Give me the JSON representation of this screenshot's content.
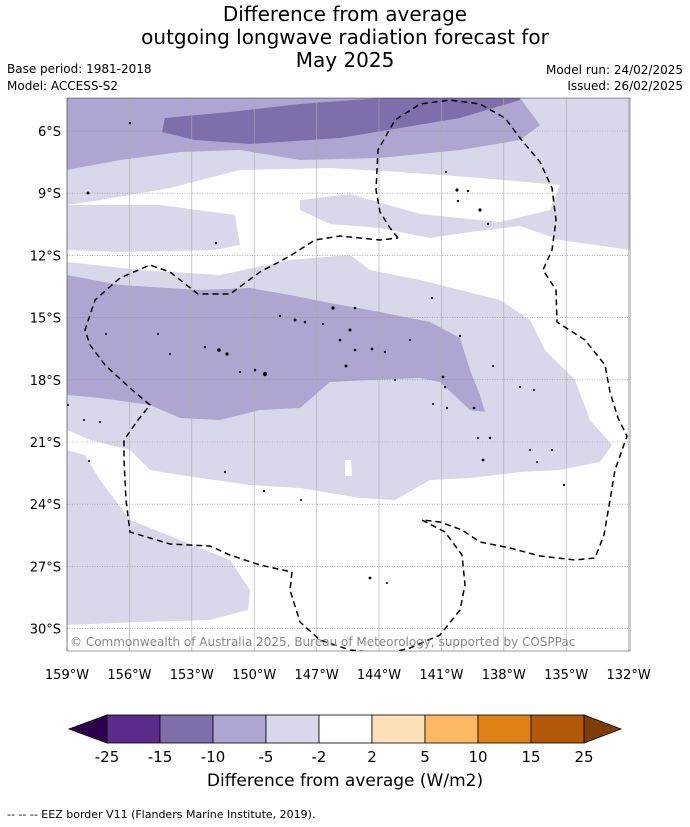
{
  "title_lines": [
    "Difference from average",
    "outgoing longwave radiation forecast for",
    "May 2025"
  ],
  "base_period": "Base period: 1981-2018",
  "model": "Model: ACCESS-S2",
  "model_run": "Model run: 24/02/2025",
  "issued": "Issued: 26/02/2025",
  "copyright": "© Commonwealth of Australia 2025, Bureau of Meteorology, supported by COSPPac",
  "lat_labels": [
    "6°S",
    "9°S",
    "12°S",
    "15°S",
    "18°S",
    "21°S",
    "24°S",
    "27°S",
    "30°S"
  ],
  "lon_labels": [
    "159°W",
    "156°W",
    "153°W",
    "150°W",
    "147°W",
    "144°W",
    "141°W",
    "138°W",
    "135°W",
    "132°W"
  ],
  "colorbar": {
    "tick_labels": [
      "-25",
      "-15",
      "-10",
      "-5",
      "-2",
      "2",
      "5",
      "10",
      "15",
      "25"
    ],
    "colors": [
      "#5a2a8a",
      "#7e6eaa",
      "#aea6d0",
      "#d8d8ea",
      "#ffffff",
      "#fde0b8",
      "#fdb863",
      "#e08214",
      "#b35806"
    ],
    "under_color": "#2d004b",
    "over_color": "#7f3b08",
    "title": "Difference from average (W/m2)"
  },
  "legend_note": "--  --  -- EEZ border V11 (Flanders Marine Institute, 2019)."
}
